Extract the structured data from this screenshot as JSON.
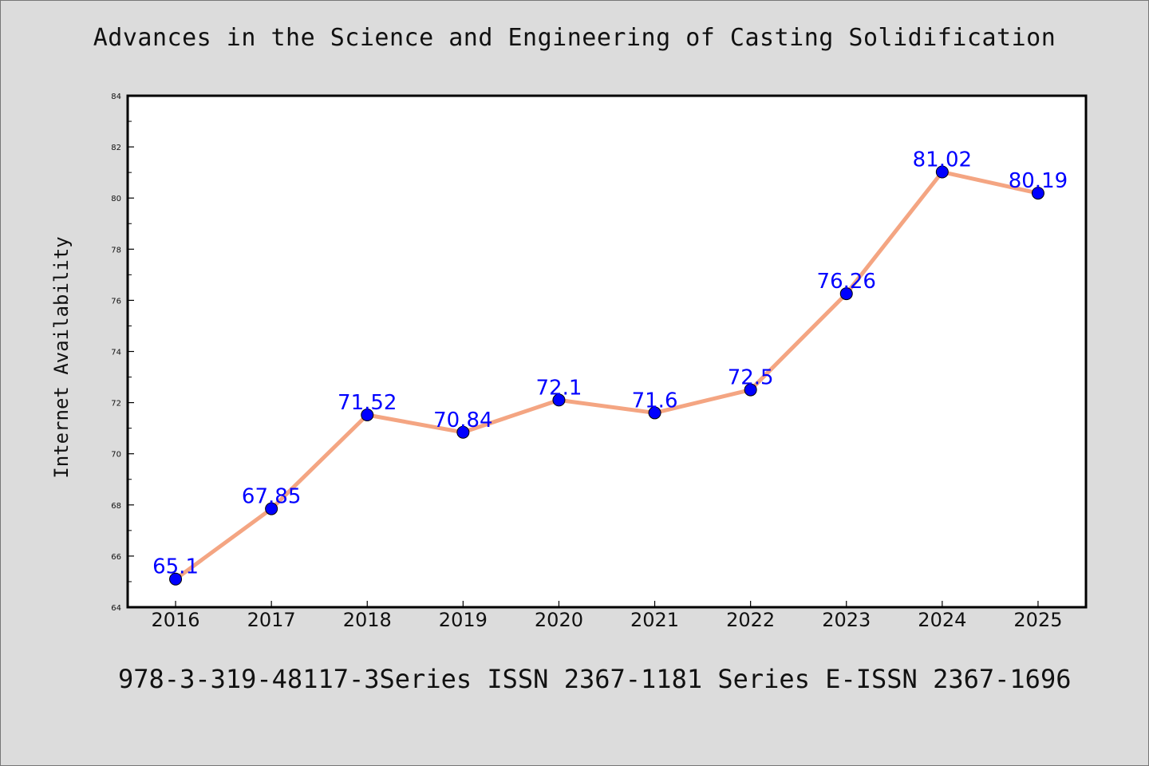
{
  "header": {
    "title": "Advances in the Science and Engineering of Casting Solidification"
  },
  "footer": {
    "text": "978-3-319-48117-3Series ISSN 2367-1181 Series E-ISSN 2367-1696"
  },
  "chart_data": {
    "type": "line",
    "title": "Advances in the Science and Engineering of Casting Solidification",
    "xlabel": "",
    "ylabel": "Internet Availability",
    "categories": [
      "2016",
      "2017",
      "2018",
      "2019",
      "2020",
      "2021",
      "2022",
      "2023",
      "2024",
      "2025"
    ],
    "values": [
      65.1,
      67.85,
      71.52,
      70.84,
      72.1,
      71.6,
      72.5,
      76.26,
      81.02,
      80.19
    ],
    "data_labels": [
      "65.1",
      "67.85",
      "71.52",
      "70.84",
      "72.1",
      "71.6",
      "72.5",
      "76.26",
      "81.02",
      "80.19"
    ],
    "ylim": [
      64,
      84
    ],
    "yticks": [
      64,
      66,
      68,
      70,
      72,
      74,
      76,
      78,
      80,
      82,
      84
    ],
    "grid": false,
    "colors": {
      "line": "#f4a582",
      "marker": "#0000ff",
      "label": "#0000ff"
    }
  }
}
